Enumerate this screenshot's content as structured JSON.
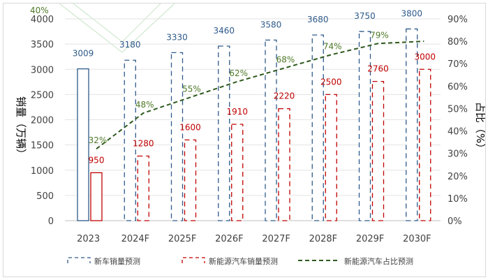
{
  "chart_data": {
    "type": "bar",
    "categories": [
      "2023",
      "2024F",
      "2025F",
      "2026F",
      "2027F",
      "2028F",
      "2029F",
      "2030F"
    ],
    "series": [
      {
        "name": "新车销量预测",
        "axis": "left",
        "values": [
          3009,
          3180,
          3330,
          3460,
          3580,
          3680,
          3750,
          3800
        ],
        "color": "#2e5a8a"
      },
      {
        "name": "新能源汽车销量预测",
        "axis": "left",
        "values": [
          950,
          1280,
          1600,
          1910,
          2220,
          2500,
          2760,
          3000
        ],
        "color": "#c00000"
      },
      {
        "name": "新能源汽车占比预测",
        "axis": "right",
        "type": "line",
        "values": [
          32,
          48,
          55,
          62,
          68,
          74,
          79,
          null
        ],
        "color": "#2e5a1e"
      }
    ],
    "ylabel": "销量（万辆）",
    "y2label": "占比（%）",
    "ylim": [
      0,
      4000
    ],
    "y2lim": [
      0,
      90
    ],
    "yticks": [
      "0",
      "500",
      "1000",
      "1500",
      "2000",
      "2500",
      "3000",
      "3500",
      "4000"
    ],
    "y2ticks": [
      "0%",
      "10%",
      "20%",
      "30%",
      "40%",
      "50%",
      "60%",
      "70%",
      "80%",
      "90%"
    ],
    "corner_label": "40%",
    "value_labels": {
      "new_car": [
        "3009",
        "3180",
        "3330",
        "3460",
        "3580",
        "3680",
        "3750",
        "3800"
      ],
      "nev": [
        "950",
        "1280",
        "1600",
        "1910",
        "2220",
        "2500",
        "2760",
        "3000"
      ],
      "share": [
        "32%",
        "48%",
        "55%",
        "62%",
        "68%",
        "74%",
        "79%"
      ]
    },
    "legend": [
      "新车销量预测",
      "新能源汽车销量预测",
      "新能源汽车占比预测"
    ],
    "legend_position": "bottom",
    "grid": true
  }
}
